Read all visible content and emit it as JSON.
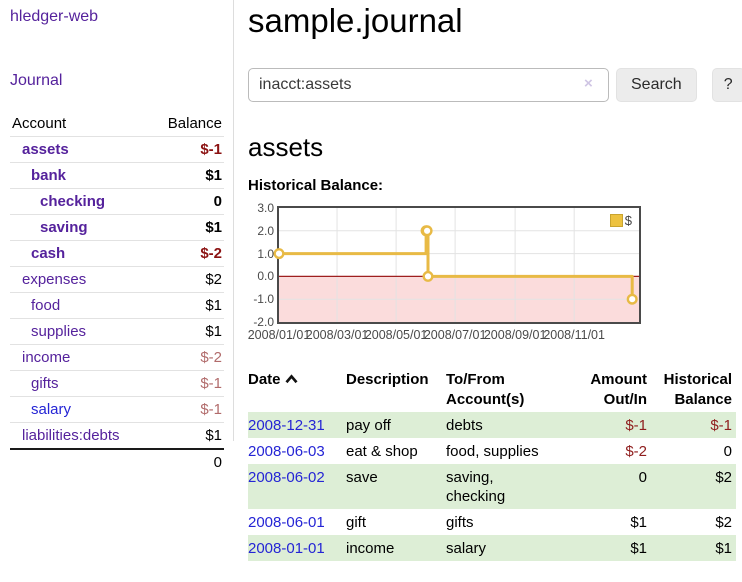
{
  "app": {
    "brand": "hledger-web",
    "nav": [
      {
        "label": "Journal"
      }
    ]
  },
  "sidebar": {
    "table_headers": {
      "account": "Account",
      "balance": "Balance"
    },
    "accounts": [
      {
        "name": "assets",
        "balance": "$-1",
        "depth": 1,
        "bold": true,
        "balance_style": "negative-strong",
        "link_style": "visited"
      },
      {
        "name": "bank",
        "balance": "$1",
        "depth": 2,
        "bold": true,
        "balance_style": "normal",
        "link_style": "visited"
      },
      {
        "name": "checking",
        "balance": "0",
        "depth": 3,
        "bold": true,
        "balance_style": "normal",
        "link_style": "visited"
      },
      {
        "name": "saving",
        "balance": "$1",
        "depth": 3,
        "bold": true,
        "balance_style": "normal",
        "link_style": "visited"
      },
      {
        "name": "cash",
        "balance": "$-2",
        "depth": 2,
        "bold": true,
        "balance_style": "negative-strong",
        "link_style": "visited"
      },
      {
        "name": "expenses",
        "balance": "$2",
        "depth": 1,
        "bold": false,
        "balance_style": "normal",
        "link_style": "visited"
      },
      {
        "name": "food",
        "balance": "$1",
        "depth": 2,
        "bold": false,
        "balance_style": "normal",
        "link_style": "visited"
      },
      {
        "name": "supplies",
        "balance": "$1",
        "depth": 2,
        "bold": false,
        "balance_style": "normal",
        "link_style": "visited"
      },
      {
        "name": "income",
        "balance": "$-2",
        "depth": 1,
        "bold": false,
        "balance_style": "negative-soft",
        "link_style": "visited"
      },
      {
        "name": "gifts",
        "balance": "$-1",
        "depth": 2,
        "bold": false,
        "balance_style": "negative-soft",
        "link_style": "visited"
      },
      {
        "name": "salary",
        "balance": "$-1",
        "depth": 2,
        "bold": false,
        "balance_style": "negative-soft",
        "link_style": "unvisited"
      },
      {
        "name": "liabilities:debts",
        "balance": "$1",
        "depth": 1,
        "bold": false,
        "balance_style": "normal",
        "link_style": "visited"
      }
    ],
    "total": "0"
  },
  "main": {
    "title": "sample.journal",
    "search": {
      "value": "inacct:assets",
      "clear_glyph": "×",
      "button_label": "Search",
      "help_label": "?"
    },
    "account_heading": "assets"
  },
  "chart_data": {
    "type": "line",
    "step": true,
    "title": "Historical Balance:",
    "legend": "$",
    "legend_position": "top-right",
    "negative_region_shaded": true,
    "ylim": [
      -2.0,
      3.0
    ],
    "yticks": [
      3.0,
      2.0,
      1.0,
      0.0,
      -1.0,
      -2.0
    ],
    "ytick_labels": [
      "3.0",
      "2.0",
      "1.0",
      "0.0",
      "-1.0",
      "-2.0"
    ],
    "x_domain": [
      "2008-01-01",
      "2009-01-07"
    ],
    "xticks": [
      "2008-01-01",
      "2008-03-01",
      "2008-05-01",
      "2008-07-01",
      "2008-09-01",
      "2008-11-01"
    ],
    "xtick_labels": [
      "2008/01/01",
      "2008/03/01",
      "2008/05/01",
      "2008/07/01",
      "2008/09/01",
      "2008/11/01"
    ],
    "series": [
      {
        "name": "$",
        "points": [
          {
            "date": "2008-01-01",
            "value": 1
          },
          {
            "date": "2008-06-01",
            "value": 2
          },
          {
            "date": "2008-06-02",
            "value": 2
          },
          {
            "date": "2008-06-03",
            "value": 0
          },
          {
            "date": "2008-12-31",
            "value": -1
          }
        ]
      }
    ]
  },
  "register": {
    "headers": [
      {
        "label": "Date",
        "sorted": "ascending"
      },
      {
        "label": "Description"
      },
      {
        "label": "To/From Account(s)"
      },
      {
        "label": "Amount Out/In",
        "align": "right"
      },
      {
        "label": "Historical Balance",
        "align": "right"
      }
    ],
    "rows": [
      {
        "date": "2008-12-31",
        "description": "pay off",
        "accounts": "debts",
        "amount": "$-1",
        "amount_negative": true,
        "balance": "$-1",
        "balance_negative": true
      },
      {
        "date": "2008-06-03",
        "description": "eat & shop",
        "accounts": "food, supplies",
        "amount": "$-2",
        "amount_negative": true,
        "balance": "0",
        "balance_negative": false
      },
      {
        "date": "2008-06-02",
        "description": "save",
        "accounts": "saving,\nchecking",
        "amount": "0",
        "amount_negative": false,
        "balance": "$2",
        "balance_negative": false
      },
      {
        "date": "2008-06-01",
        "description": "gift",
        "accounts": "gifts",
        "amount": "$1",
        "amount_negative": false,
        "balance": "$2",
        "balance_negative": false
      },
      {
        "date": "2008-01-01",
        "description": "income",
        "accounts": "salary",
        "amount": "$1",
        "amount_negative": false,
        "balance": "$1",
        "balance_negative": false
      }
    ]
  },
  "colors": {
    "link_purple": "#55229c",
    "link_blue": "#2525d5",
    "negative_strong": "#8b1212",
    "negative_soft": "#b16b6b",
    "register_negative": "#8f1d1d",
    "row_stripe_green": "#ddeed6",
    "series_gold": "#e8ba45",
    "legend_fill": "#edc240",
    "negative_area_pink": "#fbdcdc",
    "zero_line_red": "#9e1f1f",
    "grid_gray": "#e3e3e3",
    "plot_border": "#4a4a4a"
  }
}
